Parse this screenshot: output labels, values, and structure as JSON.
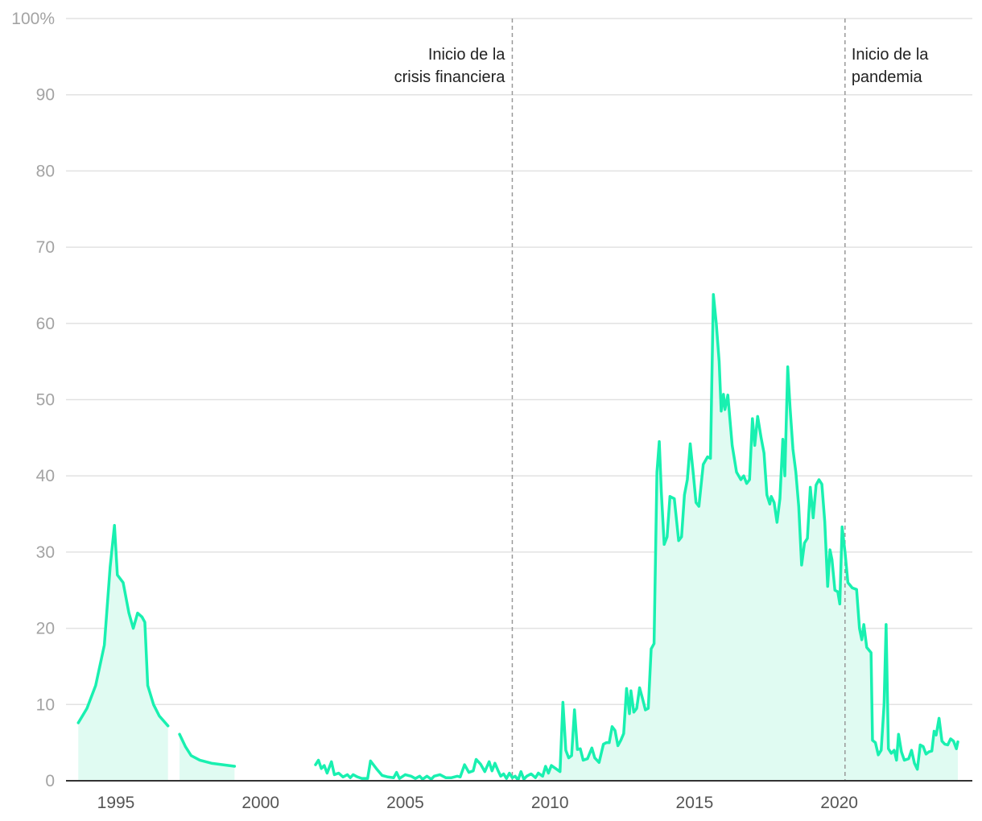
{
  "chart_data": {
    "type": "area",
    "title": "",
    "xlabel": "",
    "ylabel": "",
    "ylim": [
      0,
      100
    ],
    "xlim": [
      1993.3,
      2023.6
    ],
    "grid": true,
    "legend": "none",
    "colors": {
      "line": "#19f0b0",
      "fill": "#e0fbf2",
      "grid": "#e2e2e2",
      "axis": "#333333",
      "annotation": "#999999"
    },
    "y_ticks": [
      {
        "value": 0,
        "label": "0"
      },
      {
        "value": 10,
        "label": "10"
      },
      {
        "value": 20,
        "label": "20"
      },
      {
        "value": 30,
        "label": "30"
      },
      {
        "value": 40,
        "label": "40"
      },
      {
        "value": 50,
        "label": "50"
      },
      {
        "value": 60,
        "label": "60"
      },
      {
        "value": 70,
        "label": "70"
      },
      {
        "value": 80,
        "label": "80"
      },
      {
        "value": 90,
        "label": "90"
      },
      {
        "value": 100,
        "label": "100%"
      }
    ],
    "x_ticks": [
      {
        "value": 1995,
        "label": "1995"
      },
      {
        "value": 2000,
        "label": "2000"
      },
      {
        "value": 2005,
        "label": "2005"
      },
      {
        "value": 2010,
        "label": "2010"
      },
      {
        "value": 2015,
        "label": "2015"
      },
      {
        "value": 2020,
        "label": "2020"
      }
    ],
    "annotations": [
      {
        "x": 2008.7,
        "lines": [
          "Inicio de la",
          "crisis financiera"
        ],
        "align": "left-of-line"
      },
      {
        "x": 2020.2,
        "lines": [
          "Inicio de la",
          "pandemia"
        ],
        "align": "right-of-line"
      }
    ],
    "series": [
      {
        "filled": true,
        "points": [
          [
            1993.7,
            7.6
          ],
          [
            1994.0,
            9.5
          ],
          [
            1994.3,
            12.5
          ],
          [
            1994.6,
            17.8
          ],
          [
            1994.8,
            28.0
          ],
          [
            1994.95,
            33.5
          ],
          [
            1995.05,
            27.0
          ],
          [
            1995.25,
            26.0
          ],
          [
            1995.45,
            22.0
          ],
          [
            1995.6,
            20.0
          ],
          [
            1995.75,
            22.0
          ],
          [
            1995.9,
            21.5
          ],
          [
            1996.0,
            20.8
          ],
          [
            1996.1,
            12.5
          ],
          [
            1996.3,
            10.0
          ],
          [
            1996.5,
            8.5
          ],
          [
            1996.8,
            7.2
          ]
        ]
      },
      {
        "filled": true,
        "points": [
          [
            1997.2,
            6.1
          ],
          [
            1997.4,
            4.5
          ],
          [
            1997.6,
            3.3
          ],
          [
            1997.9,
            2.7
          ],
          [
            1998.3,
            2.3
          ],
          [
            1998.7,
            2.1
          ],
          [
            1999.1,
            1.9
          ]
        ]
      },
      {
        "filled": false,
        "points": [
          [
            2001.9,
            2.1
          ],
          [
            2002.0,
            2.7
          ],
          [
            2002.1,
            1.6
          ],
          [
            2002.2,
            2.0
          ],
          [
            2002.3,
            1.0
          ],
          [
            2002.45,
            2.5
          ],
          [
            2002.55,
            0.8
          ],
          [
            2002.7,
            1.0
          ],
          [
            2002.85,
            0.5
          ],
          [
            2003.0,
            0.8
          ],
          [
            2003.1,
            0.4
          ],
          [
            2003.2,
            0.8
          ],
          [
            2003.35,
            0.5
          ],
          [
            2003.5,
            0.3
          ],
          [
            2003.7,
            0.3
          ],
          [
            2003.8,
            2.6
          ],
          [
            2004.0,
            1.6
          ],
          [
            2004.2,
            0.7
          ],
          [
            2004.4,
            0.5
          ],
          [
            2004.6,
            0.4
          ],
          [
            2004.7,
            1.1
          ],
          [
            2004.8,
            0.3
          ],
          [
            2005.0,
            0.8
          ],
          [
            2005.2,
            0.6
          ],
          [
            2005.35,
            0.3
          ],
          [
            2005.5,
            0.6
          ],
          [
            2005.6,
            0.2
          ],
          [
            2005.75,
            0.6
          ],
          [
            2005.9,
            0.2
          ],
          [
            2006.0,
            0.6
          ],
          [
            2006.2,
            0.8
          ],
          [
            2006.4,
            0.4
          ],
          [
            2006.6,
            0.4
          ],
          [
            2006.8,
            0.6
          ],
          [
            2006.9,
            0.5
          ],
          [
            2007.05,
            2.1
          ],
          [
            2007.2,
            1.1
          ],
          [
            2007.35,
            1.3
          ],
          [
            2007.45,
            2.8
          ],
          [
            2007.6,
            2.2
          ],
          [
            2007.75,
            1.2
          ],
          [
            2007.9,
            2.5
          ],
          [
            2008.0,
            1.3
          ],
          [
            2008.1,
            2.3
          ],
          [
            2008.2,
            1.4
          ],
          [
            2008.3,
            0.6
          ],
          [
            2008.4,
            0.9
          ],
          [
            2008.5,
            0.3
          ],
          [
            2008.6,
            1.0
          ],
          [
            2008.7,
            0.4
          ],
          [
            2008.8,
            0.6
          ],
          [
            2008.9,
            0.1
          ],
          [
            2009.0,
            1.2
          ],
          [
            2009.1,
            0.2
          ],
          [
            2009.2,
            0.6
          ],
          [
            2009.35,
            0.9
          ],
          [
            2009.5,
            0.4
          ],
          [
            2009.6,
            1.0
          ]
        ]
      },
      {
        "filled": true,
        "points": [
          [
            2009.6,
            1.0
          ],
          [
            2009.75,
            0.6
          ],
          [
            2009.85,
            1.9
          ],
          [
            2009.95,
            1.0
          ],
          [
            2010.05,
            2.0
          ],
          [
            2010.2,
            1.6
          ],
          [
            2010.35,
            1.2
          ],
          [
            2010.45,
            10.3
          ],
          [
            2010.55,
            4.0
          ],
          [
            2010.65,
            3.0
          ],
          [
            2010.75,
            3.3
          ],
          [
            2010.85,
            9.3
          ],
          [
            2010.95,
            4.1
          ],
          [
            2011.05,
            4.2
          ],
          [
            2011.15,
            2.7
          ],
          [
            2011.3,
            2.9
          ],
          [
            2011.45,
            4.3
          ],
          [
            2011.55,
            3.0
          ],
          [
            2011.7,
            2.4
          ],
          [
            2011.85,
            4.8
          ],
          [
            2011.95,
            5.0
          ],
          [
            2012.05,
            5.0
          ],
          [
            2012.15,
            7.1
          ],
          [
            2012.25,
            6.6
          ],
          [
            2012.35,
            4.6
          ],
          [
            2012.45,
            5.3
          ],
          [
            2012.55,
            6.2
          ],
          [
            2012.65,
            12.1
          ],
          [
            2012.75,
            8.8
          ],
          [
            2012.8,
            11.8
          ],
          [
            2012.9,
            9.0
          ],
          [
            2013.0,
            9.5
          ],
          [
            2013.1,
            12.2
          ],
          [
            2013.2,
            10.8
          ],
          [
            2013.3,
            9.3
          ],
          [
            2013.4,
            9.5
          ],
          [
            2013.5,
            17.3
          ],
          [
            2013.6,
            18.0
          ],
          [
            2013.7,
            40.5
          ],
          [
            2013.78,
            44.5
          ],
          [
            2013.85,
            38.0
          ],
          [
            2013.95,
            31.0
          ],
          [
            2014.05,
            32.0
          ],
          [
            2014.15,
            37.3
          ],
          [
            2014.3,
            37.0
          ],
          [
            2014.45,
            31.5
          ],
          [
            2014.55,
            32.0
          ],
          [
            2014.65,
            37.5
          ],
          [
            2014.75,
            39.5
          ],
          [
            2014.85,
            44.2
          ],
          [
            2014.95,
            40.5
          ],
          [
            2015.05,
            36.5
          ],
          [
            2015.15,
            36.0
          ],
          [
            2015.3,
            41.5
          ],
          [
            2015.45,
            42.5
          ],
          [
            2015.55,
            42.3
          ],
          [
            2015.65,
            63.8
          ],
          [
            2015.75,
            60.0
          ],
          [
            2015.85,
            55.0
          ],
          [
            2015.92,
            48.5
          ],
          [
            2016.0,
            50.7
          ],
          [
            2016.05,
            48.7
          ],
          [
            2016.15,
            50.6
          ],
          [
            2016.3,
            44.0
          ],
          [
            2016.45,
            40.5
          ],
          [
            2016.6,
            39.5
          ],
          [
            2016.7,
            40.0
          ],
          [
            2016.8,
            39.0
          ],
          [
            2016.9,
            39.5
          ],
          [
            2017.0,
            47.5
          ],
          [
            2017.08,
            44.0
          ],
          [
            2017.18,
            47.8
          ],
          [
            2017.3,
            45.0
          ],
          [
            2017.4,
            43.0
          ],
          [
            2017.5,
            37.5
          ],
          [
            2017.6,
            36.3
          ],
          [
            2017.65,
            37.3
          ],
          [
            2017.75,
            36.5
          ],
          [
            2017.85,
            33.9
          ],
          [
            2017.95,
            37.0
          ],
          [
            2018.05,
            44.8
          ],
          [
            2018.12,
            40.0
          ],
          [
            2018.22,
            54.3
          ],
          [
            2018.3,
            49.0
          ],
          [
            2018.4,
            43.5
          ],
          [
            2018.5,
            40.5
          ],
          [
            2018.6,
            36.0
          ],
          [
            2018.7,
            28.3
          ],
          [
            2018.8,
            31.2
          ],
          [
            2018.9,
            31.8
          ],
          [
            2019.0,
            38.5
          ],
          [
            2019.1,
            34.5
          ],
          [
            2019.2,
            38.8
          ],
          [
            2019.3,
            39.5
          ],
          [
            2019.4,
            38.9
          ],
          [
            2019.5,
            34.0
          ],
          [
            2019.6,
            25.5
          ],
          [
            2019.68,
            30.3
          ],
          [
            2019.75,
            29.0
          ],
          [
            2019.85,
            25.0
          ],
          [
            2019.95,
            24.8
          ],
          [
            2020.02,
            23.2
          ],
          [
            2020.1,
            33.3
          ],
          [
            2020.2,
            30.0
          ],
          [
            2020.3,
            26.0
          ],
          [
            2020.45,
            25.3
          ],
          [
            2020.6,
            25.1
          ],
          [
            2020.7,
            20.0
          ],
          [
            2020.78,
            18.5
          ],
          [
            2020.85,
            20.5
          ],
          [
            2020.95,
            17.5
          ],
          [
            2021.1,
            16.8
          ],
          [
            2021.15,
            5.3
          ],
          [
            2021.25,
            5.0
          ],
          [
            2021.35,
            3.4
          ],
          [
            2021.45,
            4.0
          ],
          [
            2021.55,
            10.0
          ],
          [
            2021.62,
            20.5
          ],
          [
            2021.7,
            4.2
          ],
          [
            2021.8,
            3.6
          ],
          [
            2021.9,
            4.0
          ],
          [
            2021.98,
            2.7
          ],
          [
            2022.05,
            6.1
          ],
          [
            2022.15,
            3.8
          ],
          [
            2022.25,
            2.7
          ],
          [
            2022.4,
            2.9
          ],
          [
            2022.5,
            4.0
          ],
          [
            2022.6,
            2.3
          ],
          [
            2022.7,
            1.5
          ],
          [
            2022.8,
            4.7
          ],
          [
            2022.9,
            4.5
          ],
          [
            2023.0,
            3.5
          ],
          [
            2023.1,
            3.8
          ],
          [
            2023.2,
            3.9
          ],
          [
            2023.28,
            6.5
          ],
          [
            2023.35,
            6.0
          ],
          [
            2023.45,
            8.2
          ],
          [
            2023.55,
            5.2
          ],
          [
            2023.65,
            4.8
          ],
          [
            2023.75,
            4.7
          ],
          [
            2023.85,
            5.5
          ],
          [
            2023.95,
            5.2
          ],
          [
            2024.05,
            4.2
          ],
          [
            2024.1,
            5.1
          ]
        ]
      }
    ]
  }
}
